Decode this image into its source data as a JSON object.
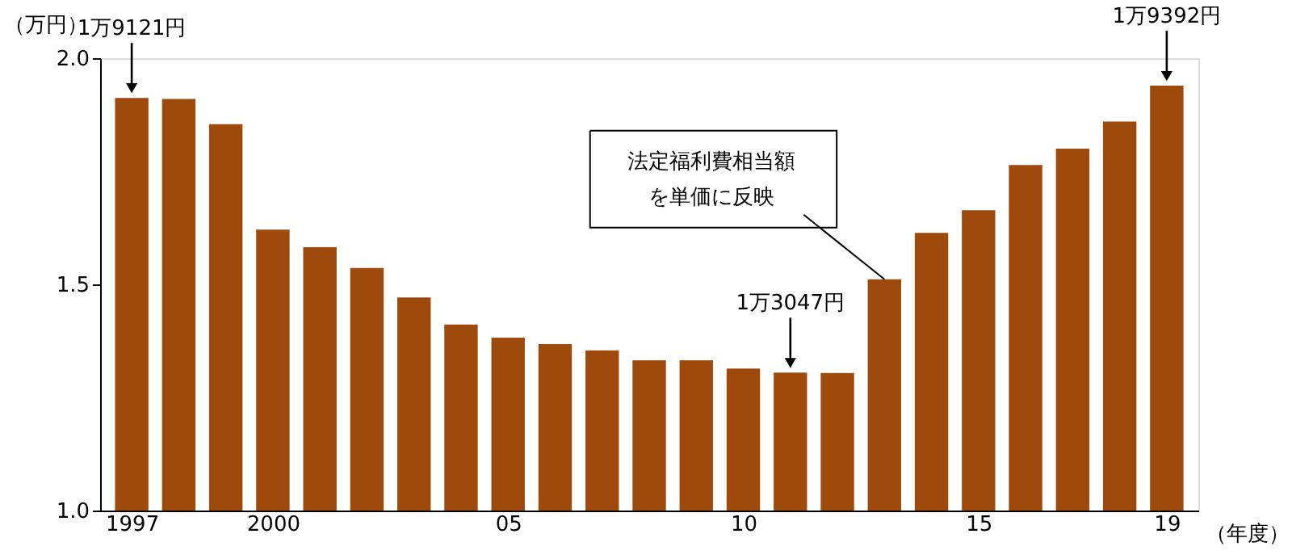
{
  "chart_data": {
    "type": "bar",
    "x": [
      1997,
      1998,
      1999,
      2000,
      2001,
      2002,
      2003,
      2004,
      2005,
      2006,
      2007,
      2008,
      2009,
      2010,
      2011,
      2012,
      2013,
      2014,
      2015,
      2016,
      2017,
      2018,
      2019
    ],
    "values": [
      1.9121,
      1.91,
      1.854,
      1.621,
      1.582,
      1.536,
      1.471,
      1.411,
      1.382,
      1.368,
      1.354,
      1.332,
      1.332,
      1.314,
      1.3047,
      1.304,
      1.511,
      1.614,
      1.664,
      1.764,
      1.8,
      1.86,
      1.9392
    ],
    "color": "#9e4a0c",
    "xlabel": "（年度）",
    "ylabel": "（万円）",
    "xlim": [
      1996.5,
      2019.5
    ],
    "xticks": [
      1997,
      2000,
      {
        "value": 2005,
        "label": "05"
      },
      {
        "value": 2010,
        "label": "10"
      },
      {
        "value": 2015,
        "label": "15"
      },
      {
        "value": 2019,
        "label": "19"
      }
    ],
    "ylim": [
      1.0,
      2.0
    ],
    "yticks": [
      {
        "value": 1.0,
        "label": "1.0"
      },
      {
        "value": 1.5,
        "label": "1.5"
      },
      {
        "value": 2.0,
        "label": "2.0"
      }
    ],
    "grid": false,
    "annotations": [
      {
        "text": "1万9121円",
        "x": 1997,
        "y": 1.9121
      },
      {
        "text": "1万3047円",
        "x": 2011,
        "y": 1.3047
      },
      {
        "text": "法定福利費相当額を単価に反映",
        "x": 2013,
        "y": 1.511
      },
      {
        "text": "1万9392円",
        "x": 2019,
        "y": 1.9392
      }
    ]
  }
}
